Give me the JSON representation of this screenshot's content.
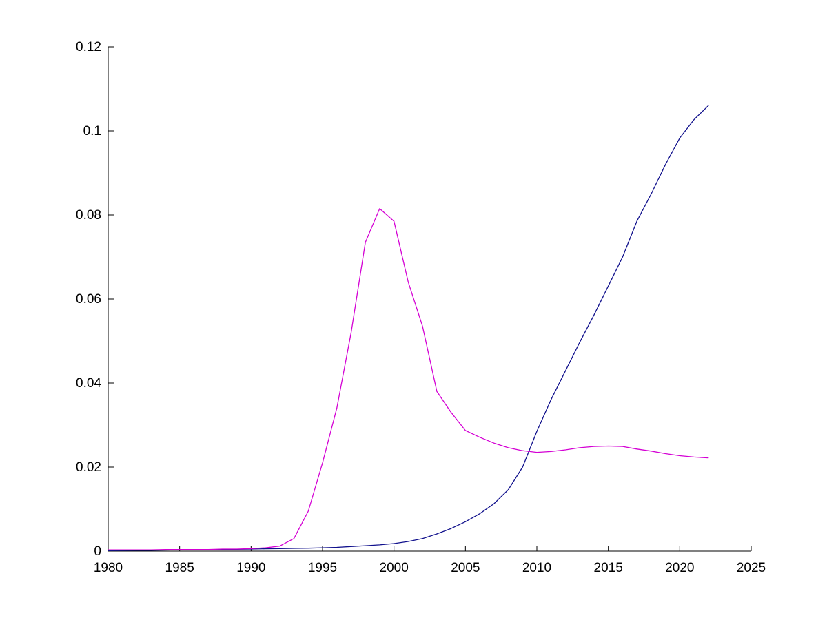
{
  "figure": {
    "background_color": "#ffffff",
    "axis_color": "#000000"
  },
  "chart_data": {
    "type": "line",
    "title": "",
    "xlabel": "",
    "ylabel": "",
    "xlim": [
      1980,
      2025
    ],
    "ylim": [
      0,
      0.12
    ],
    "grid": false,
    "legend_position": "none",
    "tick_direction": "in",
    "x_ticks": [
      1980,
      1985,
      1990,
      1995,
      2000,
      2005,
      2010,
      2015,
      2020,
      2025
    ],
    "x_tick_labels": [
      "1980",
      "1985",
      "1990",
      "1995",
      "2000",
      "2005",
      "2010",
      "2015",
      "2020",
      "2025"
    ],
    "y_ticks": [
      0,
      0.02,
      0.04,
      0.06,
      0.08,
      0.1,
      0.12
    ],
    "y_tick_labels": [
      "0",
      "0.02",
      "0.04",
      "0.06",
      "0.08",
      "0.1",
      "0.12"
    ],
    "x": [
      1980,
      1981,
      1982,
      1983,
      1984,
      1985,
      1986,
      1987,
      1988,
      1989,
      1990,
      1991,
      1992,
      1993,
      1994,
      1995,
      1996,
      1997,
      1998,
      1999,
      2000,
      2001,
      2002,
      2003,
      2004,
      2005,
      2006,
      2007,
      2008,
      2009,
      2010,
      2011,
      2012,
      2013,
      2014,
      2015,
      2016,
      2017,
      2018,
      2019,
      2020,
      2021,
      2022
    ],
    "series": [
      {
        "name": "dark-blue-series",
        "color": "#10108c",
        "values": [
          0.0001,
          0.00015,
          0.0002,
          0.0002,
          0.00025,
          0.0003,
          0.0003,
          0.00035,
          0.0004,
          0.00045,
          0.0005,
          0.00055,
          0.0006,
          0.00065,
          0.0007,
          0.0008,
          0.0009,
          0.0011,
          0.0013,
          0.0015,
          0.0018,
          0.0023,
          0.003,
          0.0041,
          0.0054,
          0.007,
          0.0089,
          0.0113,
          0.0146,
          0.02,
          0.0285,
          0.0361,
          0.0429,
          0.0497,
          0.0562,
          0.0631,
          0.07,
          0.0785,
          0.085,
          0.092,
          0.0983,
          0.1027,
          0.106
        ]
      },
      {
        "name": "magenta-series",
        "color": "#d400d4",
        "values": [
          0.0003,
          0.0003,
          0.0003,
          0.0003,
          0.0004,
          0.0004,
          0.0004,
          0.0004,
          0.0005,
          0.0005,
          0.0006,
          0.0008,
          0.0012,
          0.003,
          0.0095,
          0.021,
          0.034,
          0.052,
          0.0735,
          0.0815,
          0.0785,
          0.064,
          0.0535,
          0.038,
          0.033,
          0.0287,
          0.0271,
          0.0257,
          0.0246,
          0.0239,
          0.0235,
          0.0237,
          0.0241,
          0.0246,
          0.0249,
          0.025,
          0.0249,
          0.0243,
          0.0238,
          0.0232,
          0.0227,
          0.0224,
          0.0222
        ]
      }
    ]
  }
}
